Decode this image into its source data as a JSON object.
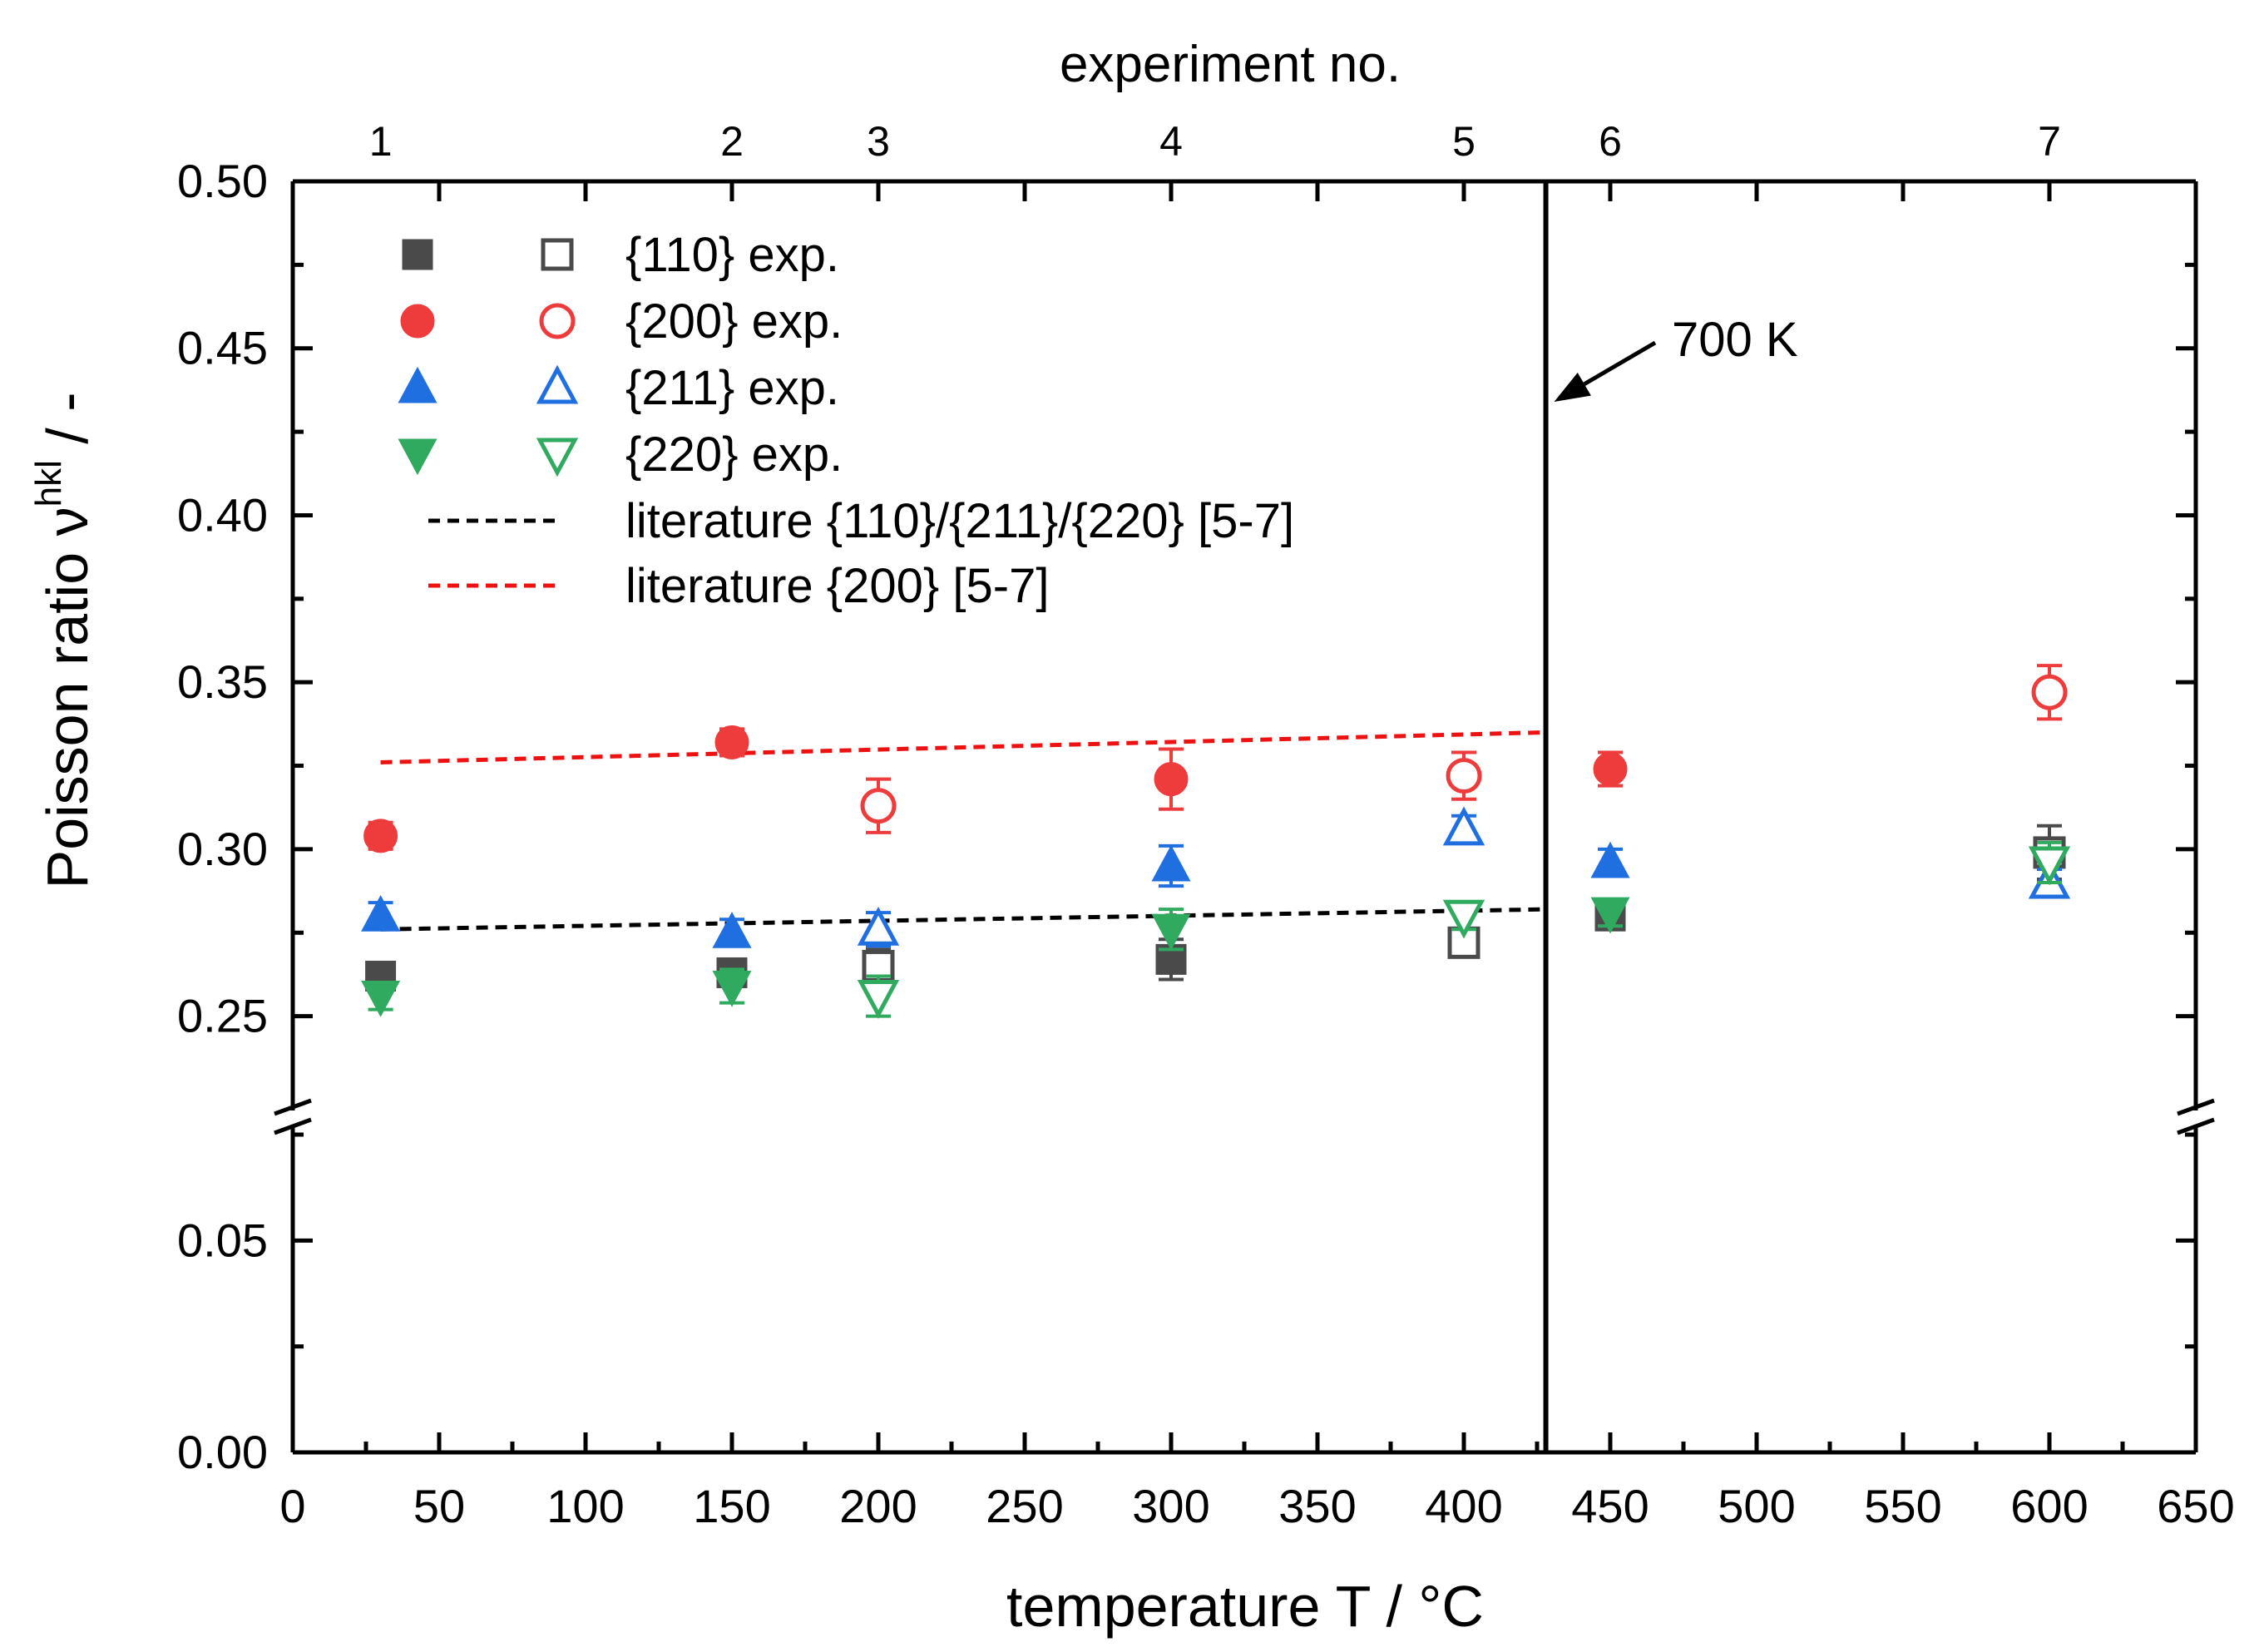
{
  "chart_data": {
    "type": "scatter",
    "title": "",
    "top_axis": {
      "label": "experiment no.",
      "ticks": [
        {
          "label": "1",
          "x": 30
        },
        {
          "label": "2",
          "x": 150
        },
        {
          "label": "3",
          "x": 200
        },
        {
          "label": "4",
          "x": 300
        },
        {
          "label": "5",
          "x": 400
        },
        {
          "label": "6",
          "x": 450
        },
        {
          "label": "7",
          "x": 600
        }
      ]
    },
    "xlabel": "temperature T / °C",
    "ylabel_main": "Poisson ratio ν",
    "ylabel_sup": "hkl",
    "ylabel_tail": " / -",
    "xlim": [
      0,
      650
    ],
    "xticks": [
      0,
      50,
      100,
      150,
      200,
      250,
      300,
      350,
      400,
      450,
      500,
      550,
      600,
      650
    ],
    "xtick_labels": [
      "0",
      "50",
      "100",
      "150",
      "200",
      "250",
      "300",
      "350",
      "400",
      "450",
      "500",
      "550",
      "600",
      "650"
    ],
    "y_upper_range": [
      0.225,
      0.5
    ],
    "y_lower_range": [
      0,
      0.075
    ],
    "y_break": true,
    "yticks": [
      0.0,
      0.05,
      0.25,
      0.3,
      0.35,
      0.4,
      0.45,
      0.5
    ],
    "ytick_labels": [
      "0.00",
      "0.05",
      "0.25",
      "0.30",
      "0.35",
      "0.40",
      "0.45",
      "0.50"
    ],
    "vertical_line_x": 428,
    "annotation": {
      "text": "700 K",
      "y": 0.45
    },
    "legend_placement": "top-left",
    "series": [
      {
        "name": "{110} exp.",
        "color": "#4a4a4a",
        "marker": "square",
        "points": [
          {
            "x": 30,
            "y": 0.262,
            "err": 0.004,
            "filled": true
          },
          {
            "x": 150,
            "y": 0.263,
            "err": 0.004,
            "filled": true
          },
          {
            "x": 200,
            "y": 0.265,
            "err": 0.005,
            "filled": false
          },
          {
            "x": 300,
            "y": 0.267,
            "err": 0.006,
            "filled": true
          },
          {
            "x": 400,
            "y": 0.272,
            "err": 0.003,
            "filled": false
          },
          {
            "x": 450,
            "y": 0.28,
            "err": 0.003,
            "filled": true
          },
          {
            "x": 600,
            "y": 0.299,
            "err": 0.008,
            "filled": false
          }
        ]
      },
      {
        "name": "{200} exp.",
        "color": "#ee3b3b",
        "marker": "circle",
        "points": [
          {
            "x": 30,
            "y": 0.304,
            "err": 0.004,
            "filled": true
          },
          {
            "x": 150,
            "y": 0.332,
            "err": 0.004,
            "filled": true
          },
          {
            "x": 200,
            "y": 0.313,
            "err": 0.008,
            "filled": false
          },
          {
            "x": 300,
            "y": 0.321,
            "err": 0.009,
            "filled": true
          },
          {
            "x": 400,
            "y": 0.322,
            "err": 0.007,
            "filled": false
          },
          {
            "x": 450,
            "y": 0.324,
            "err": 0.005,
            "filled": true
          },
          {
            "x": 600,
            "y": 0.347,
            "err": 0.008,
            "filled": false
          }
        ]
      },
      {
        "name": "{211} exp.",
        "color": "#1f6fe0",
        "marker": "triangle-up",
        "points": [
          {
            "x": 30,
            "y": 0.28,
            "err": 0.004,
            "filled": true
          },
          {
            "x": 150,
            "y": 0.275,
            "err": 0.004,
            "filled": true
          },
          {
            "x": 200,
            "y": 0.276,
            "err": 0.005,
            "filled": false
          },
          {
            "x": 300,
            "y": 0.295,
            "err": 0.006,
            "filled": true
          },
          {
            "x": 400,
            "y": 0.306,
            "err": 0.004,
            "filled": false
          },
          {
            "x": 450,
            "y": 0.296,
            "err": 0.004,
            "filled": true
          },
          {
            "x": 600,
            "y": 0.29,
            "err": 0.004,
            "filled": false
          }
        ]
      },
      {
        "name": "{220} exp.",
        "color": "#2faa5f",
        "marker": "triangle-down",
        "points": [
          {
            "x": 30,
            "y": 0.256,
            "err": 0.004,
            "filled": true
          },
          {
            "x": 150,
            "y": 0.259,
            "err": 0.005,
            "filled": true
          },
          {
            "x": 200,
            "y": 0.256,
            "err": 0.006,
            "filled": false
          },
          {
            "x": 300,
            "y": 0.276,
            "err": 0.006,
            "filled": true
          },
          {
            "x": 400,
            "y": 0.28,
            "err": 0.004,
            "filled": false
          },
          {
            "x": 450,
            "y": 0.281,
            "err": 0.004,
            "filled": true
          },
          {
            "x": 600,
            "y": 0.296,
            "err": 0.006,
            "filled": false
          }
        ]
      }
    ],
    "literature_lines": [
      {
        "name": "literature {110}/{211}/{220} [5-7]",
        "color": "#000000",
        "x": [
          30,
          428
        ],
        "y": [
          0.276,
          0.282
        ]
      },
      {
        "name": "literature {200} [5-7]",
        "color": "#ee1111",
        "x": [
          30,
          428
        ],
        "y": [
          0.326,
          0.335
        ]
      }
    ]
  }
}
